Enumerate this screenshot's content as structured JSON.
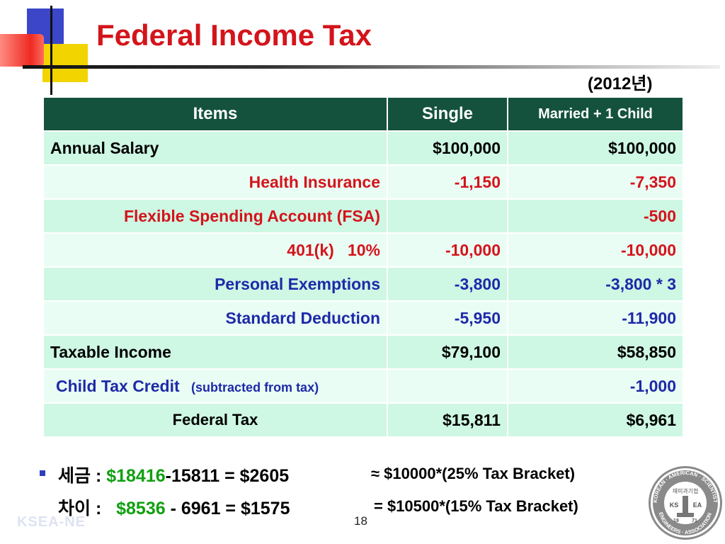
{
  "title": "Federal Income Tax",
  "year": "(2012년)",
  "table": {
    "headers": [
      "Items",
      "Single",
      "Married + 1 Child"
    ],
    "rows": [
      {
        "item": "Annual Salary",
        "single": "$100,000",
        "married": "$100,000"
      },
      {
        "item": "Health Insurance",
        "single": "-1,150",
        "married": "-7,350"
      },
      {
        "item": "Flexible Spending Account (FSA)",
        "single": "",
        "married": "-500"
      },
      {
        "item": "401(k)   10%",
        "single": "-10,000",
        "married": "-10,000"
      },
      {
        "item": "Personal Exemptions",
        "single": "-3,800",
        "married": "-3,800 * 3"
      },
      {
        "item": "Standard Deduction",
        "single": "-5,950",
        "married": "-11,900"
      },
      {
        "item": "Taxable Income",
        "single": "$79,100",
        "married": "$58,850"
      },
      {
        "item": "Child Tax Credit",
        "item_note": "(subtracted from tax)",
        "single": "",
        "married": "-1,000"
      },
      {
        "item": "Federal Tax",
        "single": "$15,811",
        "married": "$6,961"
      }
    ]
  },
  "summary": {
    "line1": {
      "label": "세금 : ",
      "highlight": "$18416",
      "rest": "-15811 = $2605"
    },
    "line2": {
      "label": "차이 :   ",
      "highlight": "$8536",
      "rest": " - 6961 = $1575"
    },
    "note1": "≈ $10000*(25% Tax Bracket)",
    "note2": "= $10500*(15% Tax Bracket)"
  },
  "footer": {
    "brand": "KSEA-NE",
    "page_number": "18"
  },
  "seal": {
    "top_text": "KOREAN · AMERICAN · SCIENTISTS · AND",
    "bottom_text": "ENGINEERS · ASSOCIATION",
    "korean_text": "재미과기협",
    "left_mark": "KS",
    "right_mark": "EA",
    "year_left": "19",
    "year_right": "71"
  },
  "colors": {
    "title": "#d4141b",
    "header_bg": "#14523e",
    "row_dark": "#cef7e4",
    "row_light": "#eafdf4",
    "red_text": "#d4141b",
    "blue_text": "#1d2aa8",
    "green_text": "#10a010"
  }
}
